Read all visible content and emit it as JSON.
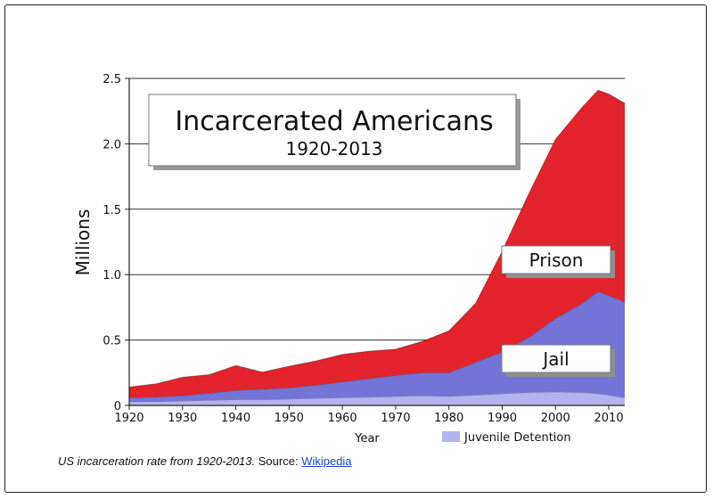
{
  "chart_data": {
    "type": "area",
    "stacked": true,
    "title": "Incarcerated Americans",
    "subtitle": "1920-2013",
    "xlabel": "Year",
    "ylabel": "Millions",
    "xlim": [
      1920,
      2013
    ],
    "ylim": [
      0,
      2.5
    ],
    "xticks": [
      1920,
      1930,
      1940,
      1950,
      1960,
      1970,
      1980,
      1990,
      2000,
      2010
    ],
    "yticks": [
      0,
      0.5,
      1.0,
      1.5,
      2.0,
      2.5
    ],
    "ytick_labels": [
      "0",
      "0.5",
      "1.0",
      "1.5",
      "2.0",
      "2.5"
    ],
    "x": [
      1920,
      1925,
      1930,
      1935,
      1940,
      1945,
      1950,
      1955,
      1960,
      1965,
      1970,
      1975,
      1980,
      1985,
      1990,
      1995,
      2000,
      2005,
      2008,
      2010,
      2013
    ],
    "series": [
      {
        "name": "Juvenile Detention",
        "color": "#b3b3f0",
        "values": [
          0.03,
          0.03,
          0.035,
          0.04,
          0.045,
          0.045,
          0.05,
          0.055,
          0.06,
          0.065,
          0.07,
          0.075,
          0.07,
          0.08,
          0.09,
          0.1,
          0.105,
          0.1,
          0.09,
          0.08,
          0.06
        ]
      },
      {
        "name": "Jail",
        "color": "#7474d6",
        "values": [
          0.03,
          0.035,
          0.04,
          0.055,
          0.07,
          0.08,
          0.085,
          0.1,
          0.12,
          0.14,
          0.16,
          0.175,
          0.18,
          0.25,
          0.32,
          0.42,
          0.56,
          0.68,
          0.78,
          0.76,
          0.73
        ]
      },
      {
        "name": "Prison",
        "color": "#e2232b",
        "values": [
          0.08,
          0.1,
          0.14,
          0.14,
          0.19,
          0.13,
          0.165,
          0.185,
          0.21,
          0.21,
          0.2,
          0.24,
          0.32,
          0.45,
          0.77,
          1.1,
          1.37,
          1.5,
          1.54,
          1.54,
          1.52
        ]
      }
    ],
    "annotations": [
      "Prison",
      "Jail"
    ],
    "legend": [
      "Juvenile Detention"
    ]
  },
  "caption": {
    "italic_text": "US incarceration rate from 1920-2013.",
    "source_label": "Source:",
    "link_text": "Wikipedia"
  }
}
